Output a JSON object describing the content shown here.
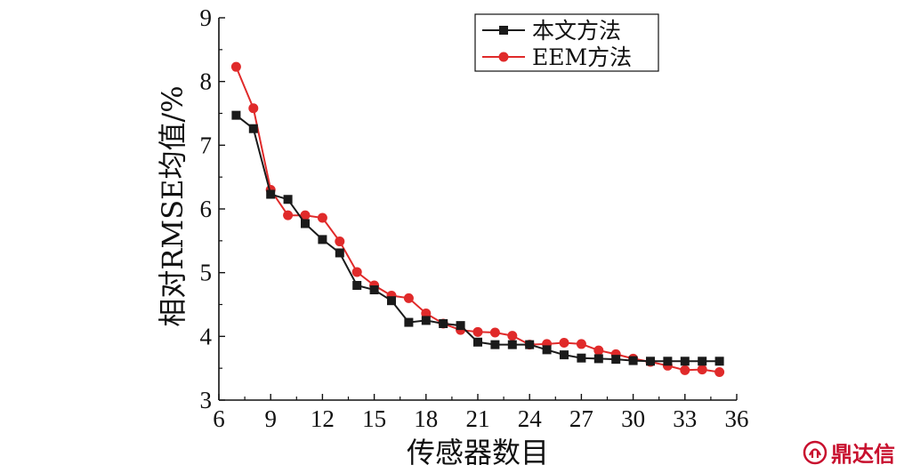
{
  "chart_data": {
    "type": "line",
    "xlabel": "传感器数目",
    "ylabel": "相对RMSE均值/%",
    "xlim": [
      6,
      36
    ],
    "ylim": [
      3,
      9
    ],
    "xticks": [
      6,
      9,
      12,
      15,
      18,
      21,
      24,
      27,
      30,
      33,
      36
    ],
    "yticks": [
      3,
      4,
      5,
      6,
      7,
      8,
      9
    ],
    "legend_position": "top-right",
    "x": [
      7,
      8,
      9,
      10,
      11,
      12,
      13,
      14,
      15,
      16,
      17,
      18,
      19,
      20,
      21,
      22,
      23,
      24,
      25,
      26,
      27,
      28,
      29,
      30,
      31,
      32,
      33,
      34,
      35
    ],
    "series": [
      {
        "name": "本文方法",
        "color": "#1a1a1a",
        "marker": "square",
        "values": [
          7.47,
          7.26,
          6.23,
          6.15,
          5.77,
          5.52,
          5.31,
          4.8,
          4.73,
          4.56,
          4.22,
          4.25,
          4.2,
          4.17,
          3.91,
          3.87,
          3.87,
          3.87,
          3.79,
          3.71,
          3.66,
          3.65,
          3.64,
          3.62,
          3.61,
          3.61,
          3.61,
          3.61,
          3.61
        ]
      },
      {
        "name": "EEM方法",
        "color": "#e02a2a",
        "marker": "circle",
        "values": [
          8.23,
          7.58,
          6.3,
          5.9,
          5.9,
          5.86,
          5.49,
          5.01,
          4.8,
          4.64,
          4.6,
          4.36,
          4.2,
          4.1,
          4.07,
          4.06,
          4.01,
          3.87,
          3.88,
          3.9,
          3.88,
          3.78,
          3.72,
          3.65,
          3.6,
          3.54,
          3.47,
          3.48,
          3.44
        ]
      }
    ]
  },
  "watermark": {
    "text": "鼎达信",
    "icon": "leaf-logo-icon",
    "color": "#c8102e"
  }
}
